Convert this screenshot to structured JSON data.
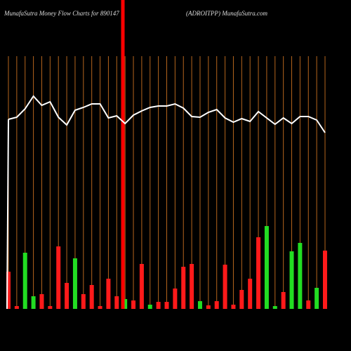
{
  "chart_data": {
    "type": "bar",
    "title": "MunafaSutra  Money Flow  Charts for 890147",
    "subtitle": "(ADROITPP) MunafaSutra.com",
    "values": [
      53,
      4,
      80,
      18,
      21,
      4,
      89,
      37,
      72,
      21,
      34,
      4,
      43,
      18,
      14,
      12,
      64,
      6,
      10,
      10,
      29,
      60,
      64,
      11,
      5,
      11,
      63,
      6,
      27,
      43,
      102,
      118,
      4,
      24,
      82,
      94,
      12,
      30,
      83
    ],
    "colors": [
      "#ff1a1a",
      "#ff1a1a",
      "#22dd22",
      "#22dd22",
      "#ff1a1a",
      "#ff1a1a",
      "#ff1a1a",
      "#ff1a1a",
      "#22dd22",
      "#ff1a1a",
      "#ff1a1a",
      "#ff1a1a",
      "#ff1a1a",
      "#ff1a1a",
      "#22dd22",
      "#ff1a1a",
      "#ff1a1a",
      "#22dd22",
      "#ff1a1a",
      "#ff1a1a",
      "#ff1a1a",
      "#ff1a1a",
      "#ff1a1a",
      "#22dd22",
      "#ff1a1a",
      "#ff1a1a",
      "#ff1a1a",
      "#ff1a1a",
      "#ff1a1a",
      "#ff1a1a",
      "#ff1a1a",
      "#22dd22",
      "#22dd22",
      "#ff1a1a",
      "#22dd22",
      "#22dd22",
      "#ff1a1a",
      "#22dd22",
      "#ff1a1a"
    ],
    "line": {
      "color": "#ffffff",
      "values": [
        270,
        273,
        285,
        303,
        290,
        295,
        273,
        262,
        283,
        287,
        292,
        292,
        272,
        275,
        264,
        276,
        282,
        287,
        289,
        289,
        292,
        286,
        274,
        273,
        280,
        284,
        272,
        266,
        271,
        267,
        281,
        272,
        263,
        272,
        264,
        274,
        274,
        269,
        251
      ]
    },
    "ylim": [
      0,
      440
    ]
  }
}
